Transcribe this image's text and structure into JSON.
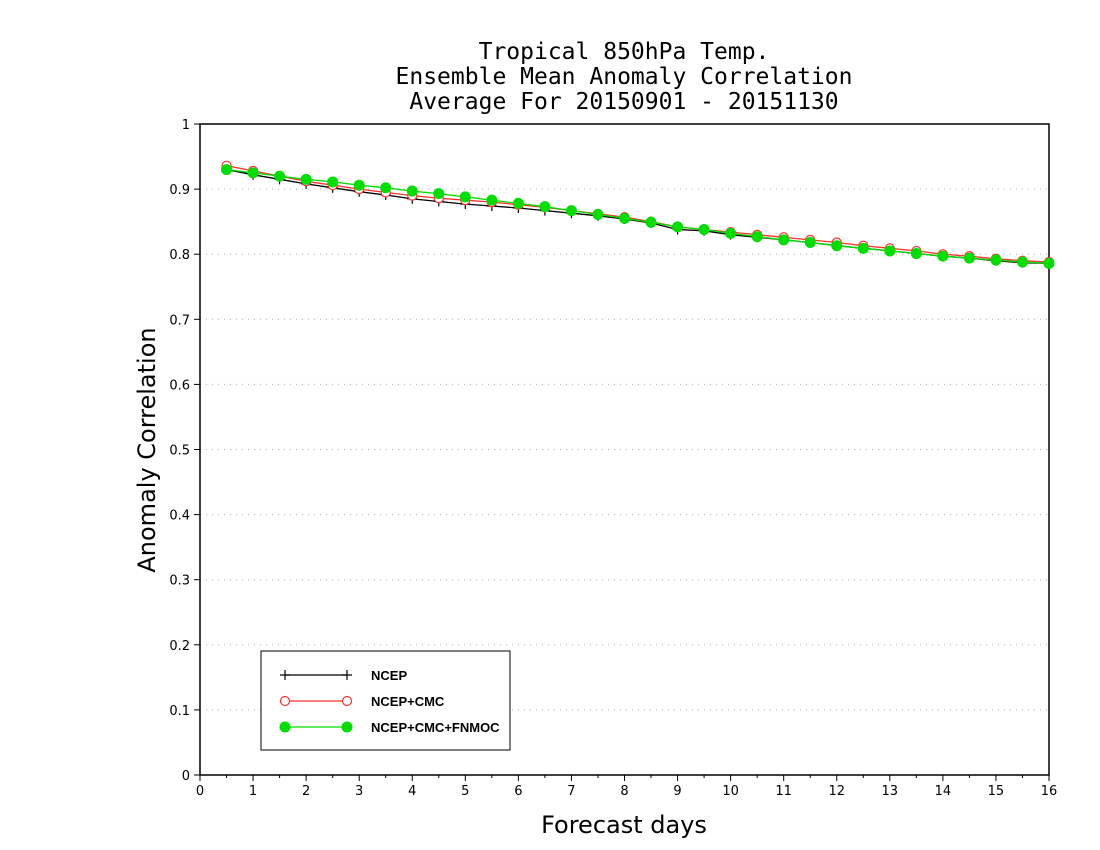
{
  "chart_data": {
    "type": "line",
    "title": [
      "Tropical 850hPa Temp.",
      "Ensemble Mean Anomaly Correlation",
      "Average For 20150901 - 20151130"
    ],
    "xlabel": "Forecast days",
    "ylabel": "Anomaly Correlation",
    "xlim": [
      0,
      16
    ],
    "ylim": [
      0,
      1
    ],
    "xticks": [
      0,
      1,
      2,
      3,
      4,
      5,
      6,
      7,
      8,
      9,
      10,
      11,
      12,
      13,
      14,
      15,
      16
    ],
    "yticks": [
      0,
      0.1,
      0.2,
      0.3,
      0.4,
      0.5,
      0.6,
      0.7,
      0.8,
      0.9,
      1
    ],
    "ytick_labels": [
      "0",
      "0.1",
      "0.2",
      "0.3",
      "0.4",
      "0.5",
      "0.6",
      "0.7",
      "0.8",
      "0.9",
      "1"
    ],
    "xtick_labels": [
      "0",
      "1",
      "2",
      "3",
      "4",
      "5",
      "6",
      "7",
      "8",
      "9",
      "10",
      "11",
      "12",
      "13",
      "14",
      "15",
      "16"
    ],
    "grid": "horizontal-dotted",
    "legend_position": "bottom-left",
    "x": [
      0.5,
      1,
      1.5,
      2,
      2.5,
      3,
      3.5,
      4,
      4.5,
      5,
      5.5,
      6,
      6.5,
      7,
      7.5,
      8,
      8.5,
      9,
      9.5,
      10,
      10.5,
      11,
      11.5,
      12,
      12.5,
      13,
      13.5,
      14,
      14.5,
      15,
      15.5,
      16
    ],
    "series": [
      {
        "name": "NCEP",
        "color": "#000000",
        "marker": "plus",
        "values": [
          0.93,
          0.922,
          0.915,
          0.908,
          0.902,
          0.896,
          0.891,
          0.885,
          0.881,
          0.877,
          0.874,
          0.871,
          0.867,
          0.863,
          0.859,
          0.854,
          0.848,
          0.838,
          0.836,
          0.83,
          0.826,
          0.822,
          0.818,
          0.813,
          0.809,
          0.805,
          0.801,
          0.797,
          0.794,
          0.79,
          0.787,
          0.786
        ]
      },
      {
        "name": "NCEP+CMC",
        "color": "#ff3333",
        "marker": "open-circle",
        "values": [
          0.936,
          0.928,
          0.92,
          0.912,
          0.906,
          0.9,
          0.895,
          0.89,
          0.886,
          0.883,
          0.88,
          0.876,
          0.872,
          0.867,
          0.862,
          0.857,
          0.85,
          0.842,
          0.838,
          0.834,
          0.83,
          0.826,
          0.822,
          0.818,
          0.813,
          0.809,
          0.805,
          0.8,
          0.797,
          0.793,
          0.79,
          0.788
        ]
      },
      {
        "name": "NCEP+CMC+FNMOC",
        "color": "#00dd00",
        "marker": "filled-circle",
        "values": [
          0.93,
          0.925,
          0.92,
          0.915,
          0.911,
          0.906,
          0.902,
          0.897,
          0.893,
          0.888,
          0.883,
          0.878,
          0.873,
          0.867,
          0.861,
          0.855,
          0.849,
          0.842,
          0.838,
          0.832,
          0.827,
          0.822,
          0.818,
          0.813,
          0.809,
          0.805,
          0.801,
          0.797,
          0.794,
          0.791,
          0.788,
          0.786
        ]
      }
    ]
  }
}
